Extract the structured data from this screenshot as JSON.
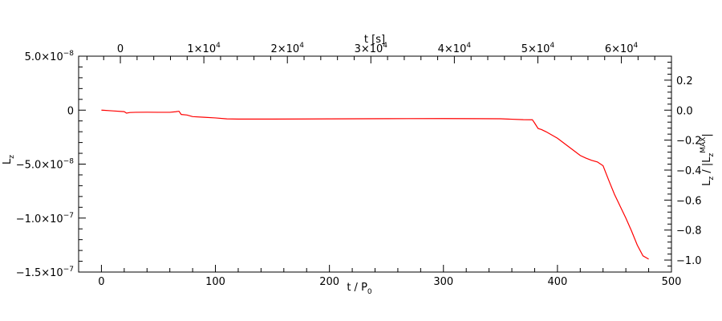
{
  "chart_data": {
    "type": "line",
    "title": "",
    "xlabel": "t / P",
    "xlabel_sub": "0",
    "ylabel": "L",
    "ylabel_sub": "z",
    "top_xlabel": "t [s]",
    "right_ylabel": "L",
    "right_ylabel_sub": "z",
    "right_ylabel_tail": " / |L",
    "right_ylabel_tail_sub": "z",
    "right_ylabel_tail_super": "MAX",
    "right_ylabel_end": "|",
    "xlim": [
      -20,
      500
    ],
    "ylim": [
      -1.5e-07,
      5e-08
    ],
    "top_xlim": [
      -5000,
      66000
    ],
    "right_ylim": [
      -1.08,
      0.36
    ],
    "grid": false,
    "series_color": "#ff0000",
    "x_ticks": [
      {
        "value": 0,
        "label": "0"
      },
      {
        "value": 100,
        "label": "100"
      },
      {
        "value": 200,
        "label": "200"
      },
      {
        "value": 300,
        "label": "300"
      },
      {
        "value": 400,
        "label": "400"
      },
      {
        "value": 500,
        "label": "500"
      }
    ],
    "y_ticks": [
      {
        "value": 5e-08,
        "mantissa": "5.0×10",
        "exp": "−8"
      },
      {
        "value": 0,
        "mantissa": "0",
        "exp": ""
      },
      {
        "value": -5e-08,
        "mantissa": "−5.0×10",
        "exp": "−8"
      },
      {
        "value": -1e-07,
        "mantissa": "−1.0×10",
        "exp": "−7"
      },
      {
        "value": -1.5e-07,
        "mantissa": "−1.5×10",
        "exp": "−7"
      }
    ],
    "top_ticks": [
      {
        "value": 0,
        "mantissa": "0",
        "exp": ""
      },
      {
        "value": 10000,
        "mantissa": "1×10",
        "exp": "4"
      },
      {
        "value": 20000,
        "mantissa": "2×10",
        "exp": "4"
      },
      {
        "value": 30000,
        "mantissa": "3×10",
        "exp": "4"
      },
      {
        "value": 40000,
        "mantissa": "4×10",
        "exp": "4"
      },
      {
        "value": 50000,
        "mantissa": "5×10",
        "exp": "4"
      },
      {
        "value": 60000,
        "mantissa": "6×10",
        "exp": "4"
      }
    ],
    "right_ticks": [
      {
        "value": 0.2,
        "label": "0.2"
      },
      {
        "value": 0.0,
        "label": "0.0"
      },
      {
        "value": -0.2,
        "label": "−0.2"
      },
      {
        "value": -0.4,
        "label": "−0.4"
      },
      {
        "value": -0.6,
        "label": "−0.6"
      },
      {
        "value": -0.8,
        "label": "−0.8"
      },
      {
        "value": -1.0,
        "label": "−1.0"
      }
    ],
    "series": [
      {
        "x": [
          0,
          10,
          20,
          22,
          25,
          30,
          40,
          50,
          60,
          65,
          68,
          70,
          75,
          80,
          90,
          100,
          110,
          120,
          150,
          200,
          250,
          300,
          330,
          350,
          370,
          378,
          380,
          383,
          386,
          390,
          400,
          410,
          420,
          425,
          430,
          435,
          440,
          445,
          450,
          455,
          460,
          465,
          470,
          475,
          480
        ],
        "y": [
          0,
          -7e-10,
          -1.4e-09,
          -2.8e-09,
          -2.2e-09,
          -2e-09,
          -1.9e-09,
          -2e-09,
          -2e-09,
          -1.5e-09,
          -1e-09,
          -4e-09,
          -4.5e-09,
          -6e-09,
          -6.6e-09,
          -7.2e-09,
          -8.1e-09,
          -8.3e-09,
          -8.3e-09,
          -8.1e-09,
          -7.9e-09,
          -7.8e-09,
          -7.9e-09,
          -8e-09,
          -8.8e-09,
          -8.9e-09,
          -1.2e-08,
          -1.7e-08,
          -1.8e-08,
          -2e-08,
          -2.6e-08,
          -3.4e-08,
          -4.2e-08,
          -4.45e-08,
          -4.65e-08,
          -4.8e-08,
          -5.15e-08,
          -6.5e-08,
          -7.8e-08,
          -8.9e-08,
          -1e-07,
          -1.12e-07,
          -1.25e-07,
          -1.35e-07,
          -1.38e-07
        ]
      }
    ]
  }
}
